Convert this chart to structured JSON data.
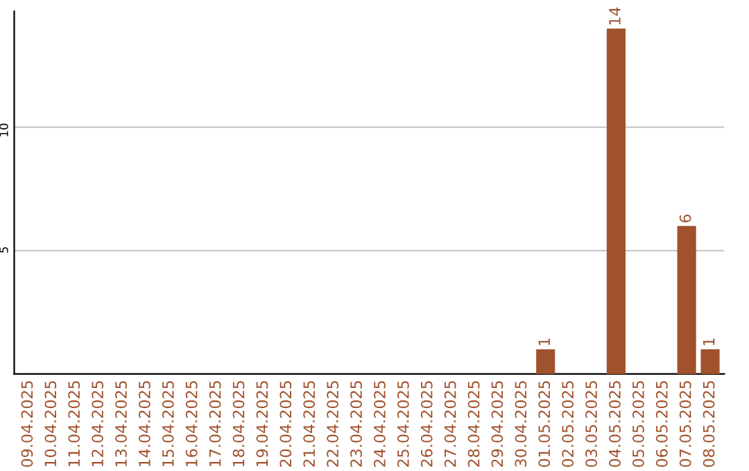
{
  "chart_data": {
    "type": "bar",
    "categories": [
      "09.04.2025",
      "10.04.2025",
      "11.04.2025",
      "12.04.2025",
      "13.04.2025",
      "14.04.2025",
      "15.04.2025",
      "16.04.2025",
      "17.04.2025",
      "18.04.2025",
      "19.04.2025",
      "20.04.2025",
      "21.04.2025",
      "22.04.2025",
      "23.04.2025",
      "24.04.2025",
      "25.04.2025",
      "26.04.2025",
      "27.04.2025",
      "28.04.2025",
      "29.04.2025",
      "30.04.2025",
      "01.05.2025",
      "02.05.2025",
      "03.05.2025",
      "04.05.2025",
      "05.05.2025",
      "06.05.2025",
      "07.05.2025",
      "08.05.2025"
    ],
    "values": [
      0,
      0,
      0,
      0,
      0,
      0,
      0,
      0,
      0,
      0,
      0,
      0,
      0,
      0,
      0,
      0,
      0,
      0,
      0,
      0,
      0,
      0,
      1,
      0,
      0,
      14,
      0,
      0,
      6,
      1
    ],
    "value_labels": [
      null,
      null,
      null,
      null,
      null,
      null,
      null,
      null,
      null,
      null,
      null,
      null,
      null,
      null,
      null,
      null,
      null,
      null,
      null,
      null,
      null,
      null,
      "1",
      null,
      null,
      "14",
      null,
      null,
      "6",
      "1"
    ],
    "color": "#a0522d",
    "ylim": [
      0,
      14.7
    ],
    "yticks": [
      5,
      10
    ],
    "grid": "y"
  }
}
